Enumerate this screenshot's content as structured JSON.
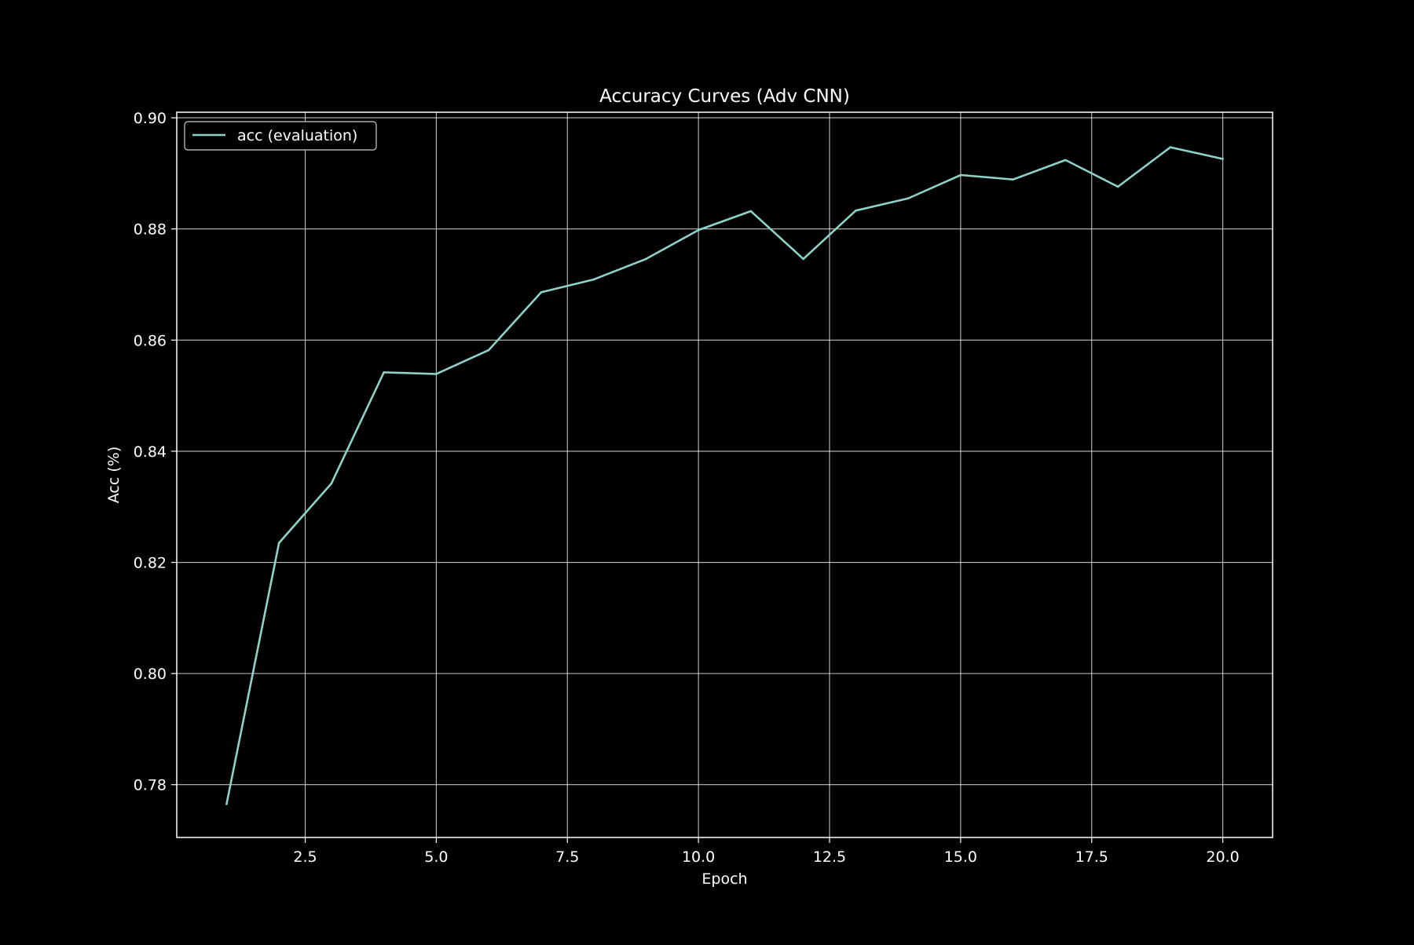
{
  "chart_data": {
    "type": "line",
    "title": "Accuracy Curves (Adv CNN)",
    "xlabel": "Epoch",
    "ylabel": "Acc (%)",
    "xlim": [
      0.05,
      20.95
    ],
    "ylim": [
      0.7705,
      0.901
    ],
    "xticks": [
      2.5,
      5.0,
      7.5,
      10.0,
      12.5,
      15.0,
      17.5,
      20.0
    ],
    "xtick_labels": [
      "2.5",
      "5.0",
      "7.5",
      "10.0",
      "12.5",
      "15.0",
      "17.5",
      "20.0"
    ],
    "yticks": [
      0.78,
      0.8,
      0.82,
      0.84,
      0.86,
      0.88,
      0.9
    ],
    "ytick_labels": [
      "0.78",
      "0.80",
      "0.82",
      "0.84",
      "0.86",
      "0.88",
      "0.90"
    ],
    "grid": true,
    "legend": "upper left",
    "background": "#000000",
    "foreground": "#ffffff",
    "series": [
      {
        "name": "acc (evaluation)",
        "color": "#8dd3c7",
        "x": [
          1,
          2,
          3,
          4,
          5,
          6,
          7,
          8,
          9,
          10,
          11,
          12,
          13,
          14,
          15,
          16,
          17,
          18,
          19,
          20
        ],
        "y": [
          0.7765,
          0.8235,
          0.8342,
          0.8542,
          0.8539,
          0.8582,
          0.8686,
          0.8709,
          0.8746,
          0.8798,
          0.8832,
          0.8746,
          0.8833,
          0.8855,
          0.8897,
          0.8889,
          0.8924,
          0.8876,
          0.8947,
          0.8926
        ]
      }
    ]
  }
}
